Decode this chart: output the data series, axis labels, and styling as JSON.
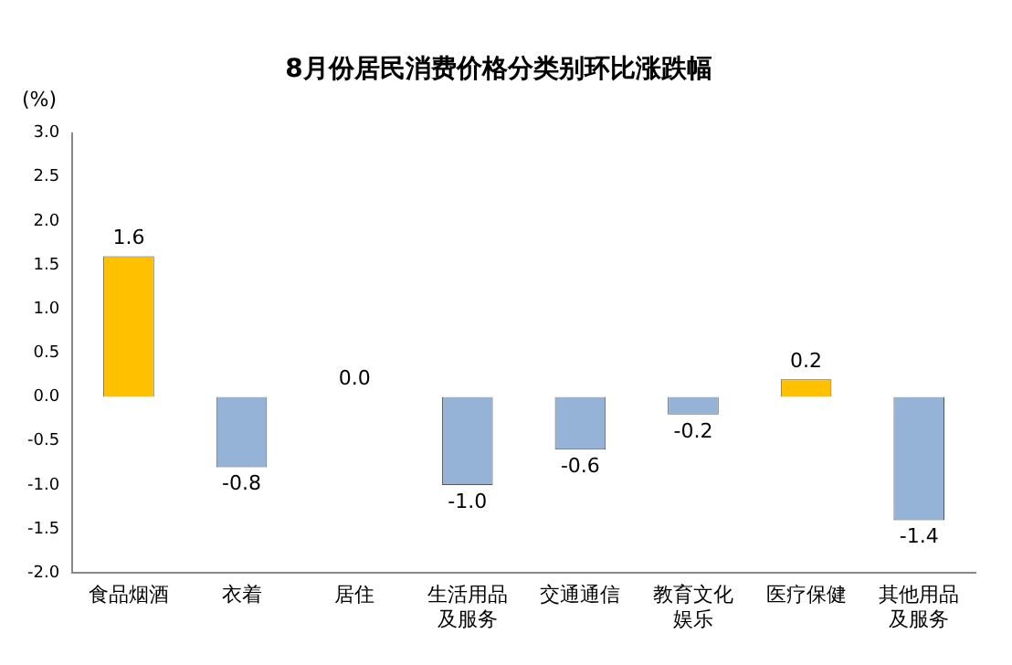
{
  "chart_data": {
    "type": "bar",
    "title": "8月份居民消费价格分类别环比涨跌幅",
    "ylabel": "(%)",
    "categories": [
      "食品烟酒",
      "衣着",
      "居住",
      "生活用品及服务",
      "交通通信",
      "教育文化娱乐",
      "医疗保健",
      "其他用品及服务"
    ],
    "values": [
      1.6,
      -0.8,
      0.0,
      -1.0,
      -0.6,
      -0.2,
      0.2,
      -1.4
    ],
    "colors": [
      "#ffc000",
      "#95b3d7",
      "#95b3d7",
      "#95b3d7",
      "#95b3d7",
      "#95b3d7",
      "#ffc000",
      "#95b3d7"
    ],
    "value_labels": [
      "1.6",
      "-0.8",
      "0.0",
      "-1.0",
      "-0.6",
      "-0.2",
      "0.2",
      "-1.4"
    ],
    "ylim": [
      -2.0,
      3.0
    ],
    "yticks": [
      {
        "value": 3,
        "label": "3.0"
      },
      {
        "value": 2.5,
        "label": "2.5"
      },
      {
        "value": 2,
        "label": "2.0"
      },
      {
        "value": 1.5,
        "label": "1.5"
      },
      {
        "value": 1,
        "label": "1.0"
      },
      {
        "value": 0.5,
        "label": "0.5"
      },
      {
        "value": 0,
        "label": "0.0"
      },
      {
        "value": -0.5,
        "label": "-0.5"
      },
      {
        "value": -1,
        "label": "-1.0"
      },
      {
        "value": -1.5,
        "label": "-1.5"
      },
      {
        "value": -2,
        "label": "-2.0"
      }
    ],
    "grid": false,
    "legend": false
  }
}
